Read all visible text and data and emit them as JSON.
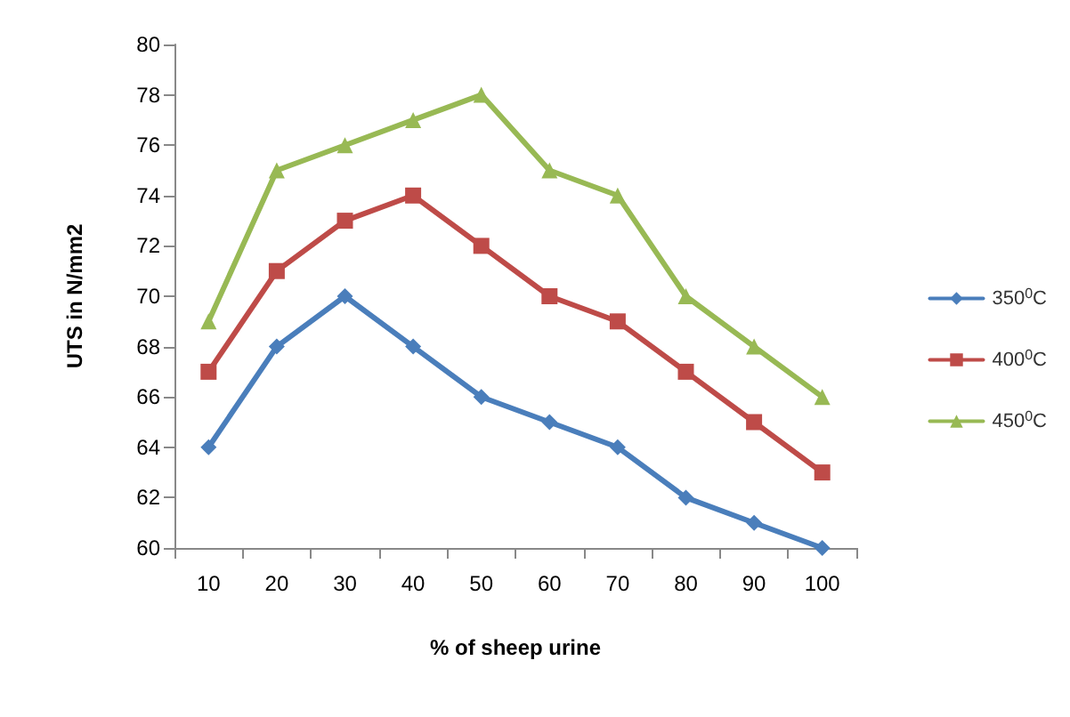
{
  "chart_data": {
    "type": "line",
    "xlabel": "% of sheep urine",
    "ylabel": "UTS in N/mm2",
    "categories": [
      "10",
      "20",
      "30",
      "40",
      "50",
      "60",
      "70",
      "80",
      "90",
      "100"
    ],
    "series": [
      {
        "name": "350$^{0}$C",
        "color": "#4a7ebb",
        "marker": "diamond",
        "values": [
          64,
          68,
          70,
          68,
          66,
          65,
          64,
          62,
          61,
          60
        ]
      },
      {
        "name": "400$^{0}$C",
        "color": "#be4b48",
        "marker": "square",
        "values": [
          67,
          71,
          73,
          74,
          72,
          70,
          69,
          67,
          65,
          63
        ]
      },
      {
        "name": "450$^{0}$C",
        "color": "#98b954",
        "marker": "triangle",
        "values": [
          69,
          75,
          76,
          77,
          78,
          75,
          74,
          70,
          68,
          66
        ]
      }
    ],
    "ylim": [
      60,
      80
    ],
    "yticks": [
      60,
      62,
      64,
      66,
      68,
      70,
      72,
      74,
      76,
      78,
      80
    ],
    "grid": false,
    "legend": "right",
    "line_style": "solid"
  }
}
